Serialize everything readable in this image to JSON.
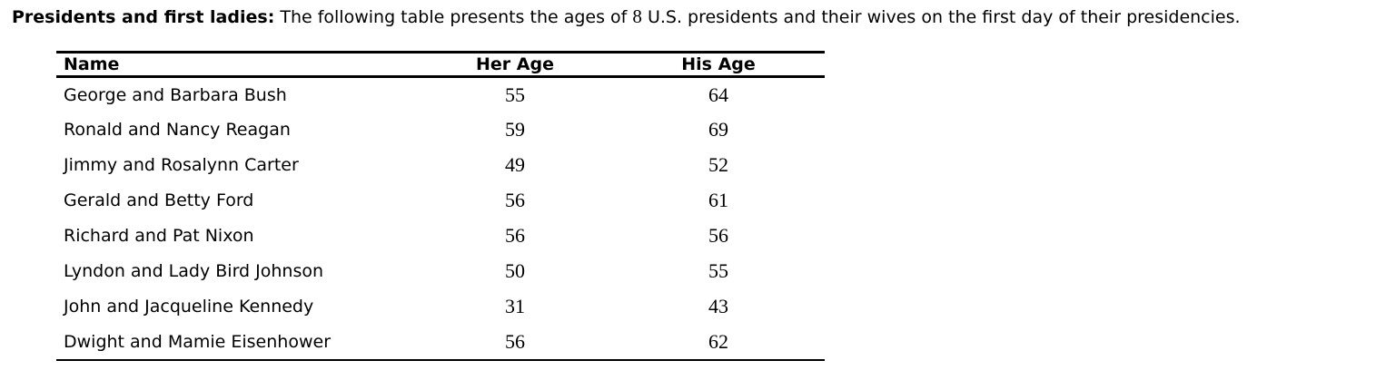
{
  "intro": {
    "bold_label": "Presidents and first ladies:",
    "before_count": " The following table presents the ages of ",
    "count": "8",
    "after_count": " U.S. presidents and their wives on the first day of their presidencies."
  },
  "table": {
    "headers": [
      "Name",
      "Her Age",
      "His Age"
    ],
    "rows": [
      {
        "name": "George and Barbara Bush",
        "her_age": "55",
        "his_age": "64"
      },
      {
        "name": "Ronald and Nancy Reagan",
        "her_age": "59",
        "his_age": "69"
      },
      {
        "name": "Jimmy and Rosalynn Carter",
        "her_age": "49",
        "his_age": "52"
      },
      {
        "name": "Gerald and Betty Ford",
        "her_age": "56",
        "his_age": "61"
      },
      {
        "name": "Richard and Pat Nixon",
        "her_age": "56",
        "his_age": "56"
      },
      {
        "name": "Lyndon and Lady Bird Johnson",
        "her_age": "50",
        "his_age": "55"
      },
      {
        "name": "John and Jacqueline Kennedy",
        "her_age": "31",
        "his_age": "43"
      },
      {
        "name": "Dwight and Mamie Eisenhower",
        "her_age": "56",
        "his_age": "62"
      }
    ],
    "text_color": "#000000",
    "line_color": "#000000"
  }
}
